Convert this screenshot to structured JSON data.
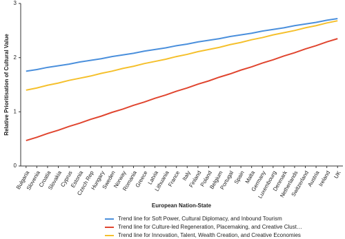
{
  "chart_data": {
    "type": "line",
    "x_label": "European Nation-State",
    "y_label": "Relative Prioritisation of Cultural Value",
    "categories": [
      "Bulgaria",
      "Slovenia",
      "Croatia",
      "Slovakia",
      "Cyprus",
      "Estonia",
      "Czech Rep",
      "Hungary",
      "Sweden",
      "Norway",
      "Romania",
      "Greece",
      "Latvia",
      "Lithuania",
      "France",
      "Italy",
      "Finland",
      "Poland",
      "Belgium",
      "Portugal",
      "Spain",
      "Malta",
      "Germany",
      "Luxembourg",
      "Denmark",
      "Netherlands",
      "Switzerland",
      "Austria",
      "Ireland",
      "UK"
    ],
    "series": [
      {
        "name": "Trend line for Soft Power, Cultural Diplomacy, and Inbound Tourism",
        "color": "#4a8fdc",
        "values": [
          1.75,
          1.78,
          1.82,
          1.85,
          1.88,
          1.92,
          1.95,
          1.98,
          2.02,
          2.05,
          2.08,
          2.12,
          2.15,
          2.18,
          2.22,
          2.25,
          2.29,
          2.32,
          2.35,
          2.39,
          2.42,
          2.45,
          2.49,
          2.52,
          2.55,
          2.59,
          2.62,
          2.65,
          2.69,
          2.72
        ]
      },
      {
        "name": "Trend line for Culture-led Regeneration, Placemaking, and Creative Clust…",
        "color": "#e0452f",
        "values": [
          0.47,
          0.53,
          0.6,
          0.66,
          0.73,
          0.79,
          0.86,
          0.92,
          0.99,
          1.05,
          1.12,
          1.18,
          1.25,
          1.31,
          1.38,
          1.44,
          1.51,
          1.57,
          1.64,
          1.7,
          1.77,
          1.83,
          1.9,
          1.96,
          2.03,
          2.09,
          2.16,
          2.22,
          2.29,
          2.35
        ]
      },
      {
        "name": "Trend line for Innovation, Talent, Wealth Creation, and Creative Economies",
        "color": "#f5c02c",
        "values": [
          1.4,
          1.44,
          1.49,
          1.53,
          1.58,
          1.62,
          1.66,
          1.71,
          1.75,
          1.8,
          1.84,
          1.89,
          1.93,
          1.97,
          2.02,
          2.06,
          2.11,
          2.15,
          2.19,
          2.24,
          2.28,
          2.33,
          2.37,
          2.42,
          2.46,
          2.5,
          2.55,
          2.59,
          2.64,
          2.68
        ]
      }
    ],
    "ylim": [
      0,
      3
    ],
    "yticks": [
      0,
      1,
      2,
      3
    ],
    "grid": false
  }
}
